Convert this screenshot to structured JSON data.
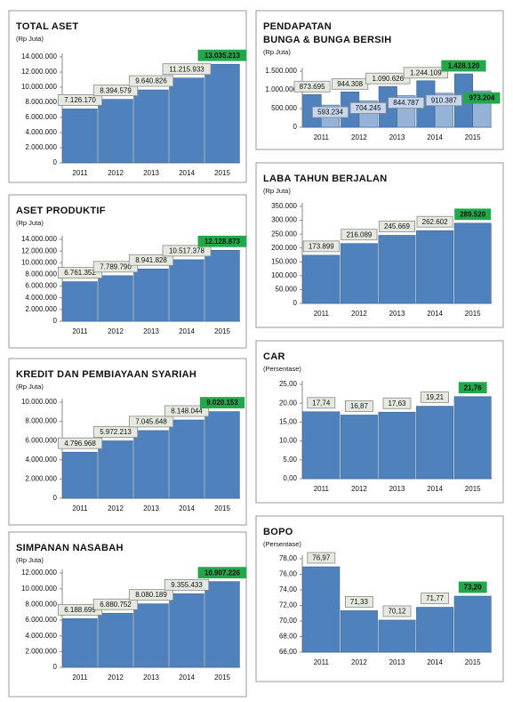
{
  "chart_data": [
    {
      "type": "bar",
      "title": "TOTAL ASET",
      "subtitle": "(Rp Juta)",
      "categories": [
        "2011",
        "2012",
        "2013",
        "2014",
        "2015"
      ],
      "values": [
        7126170,
        8394579,
        9640826,
        11215933,
        13035213
      ],
      "value_labels": [
        "7.126.170",
        "8.394.579",
        "9.640.826",
        "11.215.933",
        "13.035.213"
      ],
      "color": "#4f81bd",
      "highlight_color": "#22a84a",
      "ylim": [
        0,
        14000000
      ],
      "yticks": [
        0,
        {
          "value": 2000000,
          "label": "2.000.000"
        },
        {
          "value": 4000000,
          "label": "4.000.000"
        },
        {
          "value": 6000000,
          "label": "6.000.000"
        },
        {
          "value": 8000000,
          "label": "8.000.000"
        },
        {
          "value": 10000000,
          "label": "10.000.000"
        },
        {
          "value": 12000000,
          "label": "12.000.000"
        },
        {
          "value": 14000000,
          "label": "14.000.000"
        }
      ]
    },
    {
      "type": "bar",
      "title": "ASET PRODUKTIF",
      "subtitle": "(Rp Juta)",
      "categories": [
        "2011",
        "2012",
        "2013",
        "2014",
        "2015"
      ],
      "values": [
        6761352,
        7789790,
        8941828,
        10517378,
        12128873
      ],
      "value_labels": [
        "6.761.352",
        "7.789.790",
        "8.941.828",
        "10.517.378",
        "12.128.873"
      ],
      "color": "#4f81bd",
      "highlight_color": "#22a84a",
      "ylim": [
        0,
        14000000
      ],
      "yticks": [
        0,
        {
          "value": 2000000,
          "label": "2.000.000"
        },
        {
          "value": 4000000,
          "label": "4.000.000"
        },
        {
          "value": 6000000,
          "label": "6.000.000"
        },
        {
          "value": 8000000,
          "label": "8.000.000"
        },
        {
          "value": 10000000,
          "label": "10.000.000"
        },
        {
          "value": 12000000,
          "label": "12.000.000"
        },
        {
          "value": 14000000,
          "label": "14.000.000"
        }
      ]
    },
    {
      "type": "bar",
      "title": "KREDIT DAN PEMBIAYAAN SYARIAH",
      "subtitle": "(Rp Juta)",
      "categories": [
        "2011",
        "2012",
        "2013",
        "2014",
        "2015"
      ],
      "values": [
        4796968,
        5972213,
        7045648,
        8148044,
        9020153
      ],
      "value_labels": [
        "4.796.968",
        "5.972.213",
        "7.045.648",
        "8.148.044",
        "9.020.153"
      ],
      "color": "#4f81bd",
      "highlight_color": "#22a84a",
      "ylim": [
        0,
        10000000
      ],
      "yticks": [
        0,
        {
          "value": 2000000,
          "label": "2.000.000"
        },
        {
          "value": 4000000,
          "label": "4.000.000"
        },
        {
          "value": 6000000,
          "label": "6.000.000"
        },
        {
          "value": 8000000,
          "label": "8.000.000"
        },
        {
          "value": 10000000,
          "label": "10.000.000"
        }
      ]
    },
    {
      "type": "bar",
      "title": "SIMPANAN NASABAH",
      "subtitle": "(Rp Juta)",
      "categories": [
        "2011",
        "2012",
        "2013",
        "2014",
        "2015"
      ],
      "values": [
        6188699,
        6880752,
        8080189,
        9355433,
        10907226
      ],
      "value_labels": [
        "6.188.699",
        "6.880.752",
        "8.080.189",
        "9.355.433",
        "10.907.226"
      ],
      "color": "#4f81bd",
      "highlight_color": "#22a84a",
      "ylim": [
        0,
        12000000
      ],
      "yticks": [
        0,
        {
          "value": 2000000,
          "label": "2.000.000"
        },
        {
          "value": 4000000,
          "label": "4.000.000"
        },
        {
          "value": 6000000,
          "label": "6.000.000"
        },
        {
          "value": 8000000,
          "label": "8.000.000"
        },
        {
          "value": 10000000,
          "label": "10.000.000"
        },
        {
          "value": 12000000,
          "label": "12.000.000"
        }
      ]
    },
    {
      "type": "bar",
      "title": [
        "PENDAPATAN",
        "BUNGA & BUNGA BERSIH"
      ],
      "subtitle": "(Rp Juta)",
      "categories": [
        "2011",
        "2012",
        "2013",
        "2014",
        "2015"
      ],
      "series": [
        {
          "color": "#4f81bd",
          "values": [
            873695,
            944308,
            1090626,
            1244109,
            1428120
          ],
          "value_labels": [
            "873.695",
            "944.308",
            "1.090.626",
            "1.244.109",
            "1.428.120"
          ]
        },
        {
          "color": "#95b3d7",
          "values": [
            593234,
            704245,
            844787,
            910387,
            973204
          ],
          "value_labels": [
            "593.234",
            "704.245",
            "844.787",
            "910.387",
            "973.204"
          ]
        }
      ],
      "highlight_color": "#22a84a",
      "ylim": [
        0,
        1500000
      ],
      "yticks": [
        0,
        {
          "value": 500000,
          "label": "500.000"
        },
        {
          "value": 1000000,
          "label": "1.000.000"
        },
        {
          "value": 1500000,
          "label": "1.500.000"
        }
      ]
    },
    {
      "type": "bar",
      "title": "LABA TAHUN BERJALAN",
      "subtitle": "(Rp Juta)",
      "categories": [
        "2011",
        "2012",
        "2013",
        "2014",
        "2015"
      ],
      "values": [
        173899,
        216089,
        245669,
        262602,
        289520
      ],
      "value_labels": [
        "173.899",
        "216.089",
        "245.669",
        "262.602",
        "289.520"
      ],
      "color": "#4f81bd",
      "highlight_color": "#22a84a",
      "ylim": [
        0,
        350000
      ],
      "yticks": [
        0,
        {
          "value": 50000,
          "label": "50.000"
        },
        {
          "value": 100000,
          "label": "100.000"
        },
        {
          "value": 150000,
          "label": "150.000"
        },
        {
          "value": 200000,
          "label": "200.000"
        },
        {
          "value": 250000,
          "label": "250.000"
        },
        {
          "value": 300000,
          "label": "300.000"
        },
        {
          "value": 350000,
          "label": "350.000"
        }
      ]
    },
    {
      "type": "bar",
      "title": "CAR",
      "subtitle": "(Persentase)",
      "categories": [
        "2011",
        "2012",
        "2013",
        "2014",
        "2015"
      ],
      "values": [
        17.74,
        16.87,
        17.63,
        19.21,
        21.76
      ],
      "value_labels": [
        "17,74",
        "16,87",
        "17,63",
        "19,21",
        "21,76"
      ],
      "color": "#4f81bd",
      "highlight_color": "#22a84a",
      "ylim": [
        0,
        25
      ],
      "yticks": [
        {
          "value": 0,
          "label": "0,00"
        },
        {
          "value": 5,
          "label": "5,00"
        },
        {
          "value": 10,
          "label": "10,00"
        },
        {
          "value": 15,
          "label": "15,00"
        },
        {
          "value": 20,
          "label": "20,00"
        },
        {
          "value": 25,
          "label": "25,00"
        }
      ]
    },
    {
      "type": "bar",
      "title": "BOPO",
      "subtitle": "(Persentase)",
      "categories": [
        "2011",
        "2012",
        "2013",
        "2014",
        "2015"
      ],
      "values": [
        76.97,
        71.33,
        70.12,
        71.77,
        73.2
      ],
      "value_labels": [
        "76,97",
        "71,33",
        "70,12",
        "71,77",
        "73,20"
      ],
      "color": "#4f81bd",
      "highlight_color": "#22a84a",
      "ylim": [
        66,
        78
      ],
      "yticks": [
        {
          "value": 66,
          "label": "66,00"
        },
        {
          "value": 68,
          "label": "68,00"
        },
        {
          "value": 70,
          "label": "70,00"
        },
        {
          "value": 72,
          "label": "72,00"
        },
        {
          "value": 74,
          "label": "74,00"
        },
        {
          "value": 76,
          "label": "76,00"
        },
        {
          "value": 78,
          "label": "78,00"
        }
      ]
    }
  ]
}
